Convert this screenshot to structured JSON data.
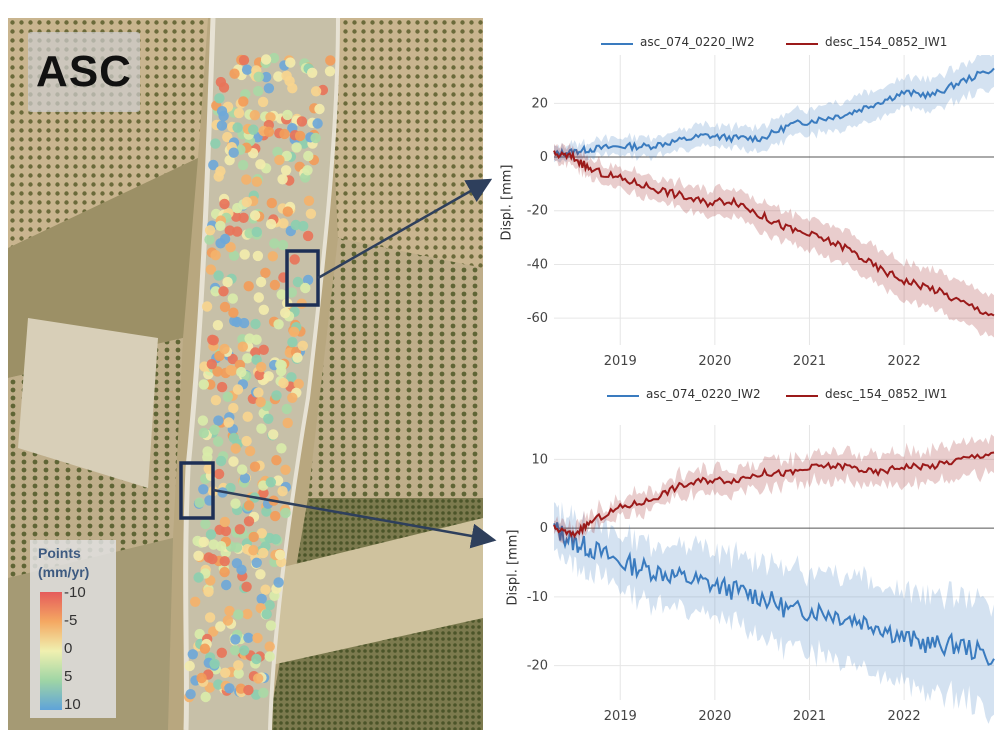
{
  "map": {
    "label": "ASC",
    "legend": {
      "title_line1": "Points",
      "title_line2": "(mm/yr)",
      "ticks": [
        "-10",
        "-5",
        "0",
        "5",
        "10"
      ]
    }
  },
  "chart_data": [
    {
      "type": "line",
      "title": "",
      "xlabel": "",
      "ylabel": "Displ. [mm]",
      "x_ticks": [
        "2019",
        "2020",
        "2021",
        "2022"
      ],
      "y_ticks": [
        20,
        0,
        -20,
        -40,
        -60
      ],
      "xlim": [
        2018.3,
        2022.95
      ],
      "ylim": [
        -70,
        38
      ],
      "grid": true,
      "legend_position": "top",
      "series": [
        {
          "name": "asc_074_0220_IW2",
          "color": "#3a7bbf",
          "x": [
            2018.3,
            2018.5,
            2018.7,
            2019.0,
            2019.3,
            2019.6,
            2019.9,
            2020.2,
            2020.5,
            2020.8,
            2021.1,
            2021.4,
            2021.7,
            2022.0,
            2022.3,
            2022.6,
            2022.95
          ],
          "values": [
            1,
            2,
            3,
            4,
            4,
            6,
            8,
            7,
            7,
            12,
            14,
            16,
            20,
            24,
            23,
            28,
            33
          ],
          "band": 5
        },
        {
          "name": "desc_154_0852_IW1",
          "color": "#9b1a1a",
          "x": [
            2018.3,
            2018.5,
            2018.7,
            2019.0,
            2019.3,
            2019.6,
            2019.9,
            2020.2,
            2020.5,
            2020.8,
            2021.1,
            2021.4,
            2021.7,
            2022.0,
            2022.3,
            2022.6,
            2022.95
          ],
          "values": [
            1,
            0,
            -5,
            -8,
            -11,
            -14,
            -17,
            -16,
            -22,
            -27,
            -30,
            -34,
            -41,
            -46,
            -49,
            -54,
            -59
          ],
          "band": 6
        }
      ]
    },
    {
      "type": "line",
      "title": "",
      "xlabel": "",
      "ylabel": "Displ. [mm]",
      "x_ticks": [
        "2019",
        "2020",
        "2021",
        "2022"
      ],
      "y_ticks": [
        10,
        0,
        -10,
        -20
      ],
      "xlim": [
        2018.3,
        2022.95
      ],
      "ylim": [
        -25,
        15
      ],
      "grid": true,
      "legend_position": "top",
      "series": [
        {
          "name": "asc_074_0220_IW2",
          "color": "#3a7bbf",
          "x": [
            2018.3,
            2018.5,
            2018.7,
            2019.0,
            2019.3,
            2019.6,
            2019.9,
            2020.2,
            2020.5,
            2020.8,
            2021.1,
            2021.4,
            2021.7,
            2022.0,
            2022.3,
            2022.6,
            2022.95
          ],
          "values": [
            0,
            -2,
            -3,
            -5,
            -6,
            -7,
            -8,
            -9,
            -10,
            -12,
            -12,
            -13,
            -14,
            -16,
            -17,
            -17,
            -19
          ],
          "band": 6
        },
        {
          "name": "desc_154_0852_IW1",
          "color": "#9b1a1a",
          "x": [
            2018.3,
            2018.5,
            2018.7,
            2019.0,
            2019.3,
            2019.6,
            2019.9,
            2020.2,
            2020.5,
            2020.8,
            2021.1,
            2021.4,
            2021.7,
            2022.0,
            2022.3,
            2022.6,
            2022.95
          ],
          "values": [
            0,
            -1,
            1,
            3,
            4,
            6,
            7,
            7,
            8,
            8,
            9,
            9,
            8,
            9,
            9,
            10,
            11
          ],
          "band": 2
        }
      ]
    }
  ]
}
